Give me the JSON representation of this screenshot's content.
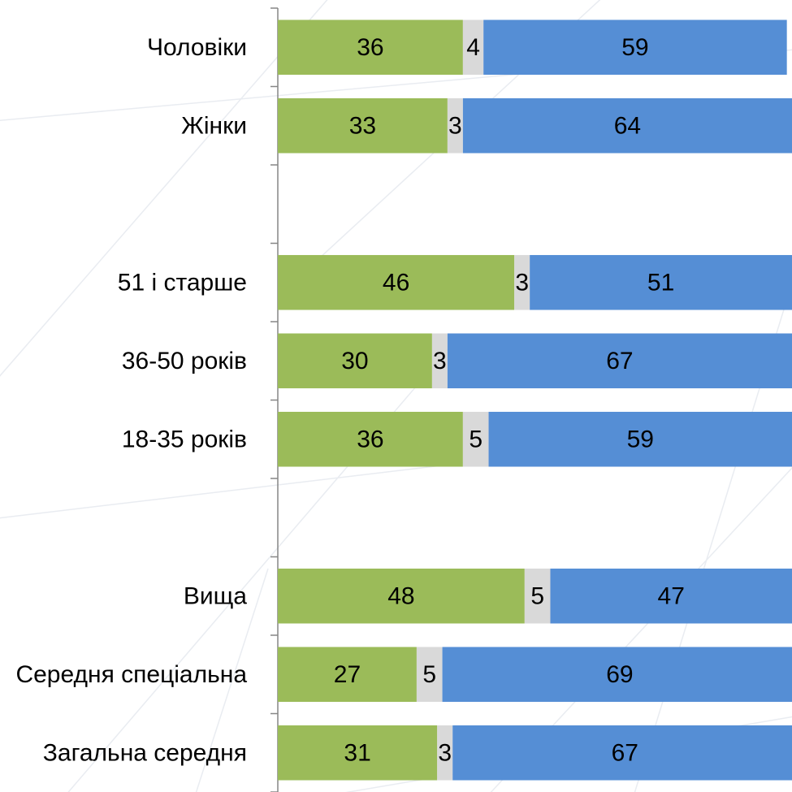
{
  "chart_data": {
    "type": "bar",
    "orientation": "horizontal",
    "stacked": true,
    "title": "",
    "xlabel": "",
    "ylabel": "",
    "xlim": [
      0,
      100
    ],
    "legend": "none",
    "grid": false,
    "categories": [
      "Чоловіки",
      "Жінки",
      "",
      "51 і старше",
      "36-50 років",
      "18-35 років",
      "",
      "Вища",
      "Середня спеціальна",
      "Загальна середня"
    ],
    "series": [
      {
        "color": "#9bbb59",
        "values": [
          36,
          33,
          null,
          46,
          30,
          36,
          null,
          48,
          27,
          31
        ]
      },
      {
        "color": "#d9d9d9",
        "values": [
          4,
          3,
          null,
          3,
          3,
          5,
          null,
          5,
          5,
          3
        ]
      },
      {
        "color": "#558ed5",
        "values": [
          59,
          64,
          null,
          51,
          67,
          59,
          null,
          47,
          69,
          67
        ]
      }
    ]
  }
}
